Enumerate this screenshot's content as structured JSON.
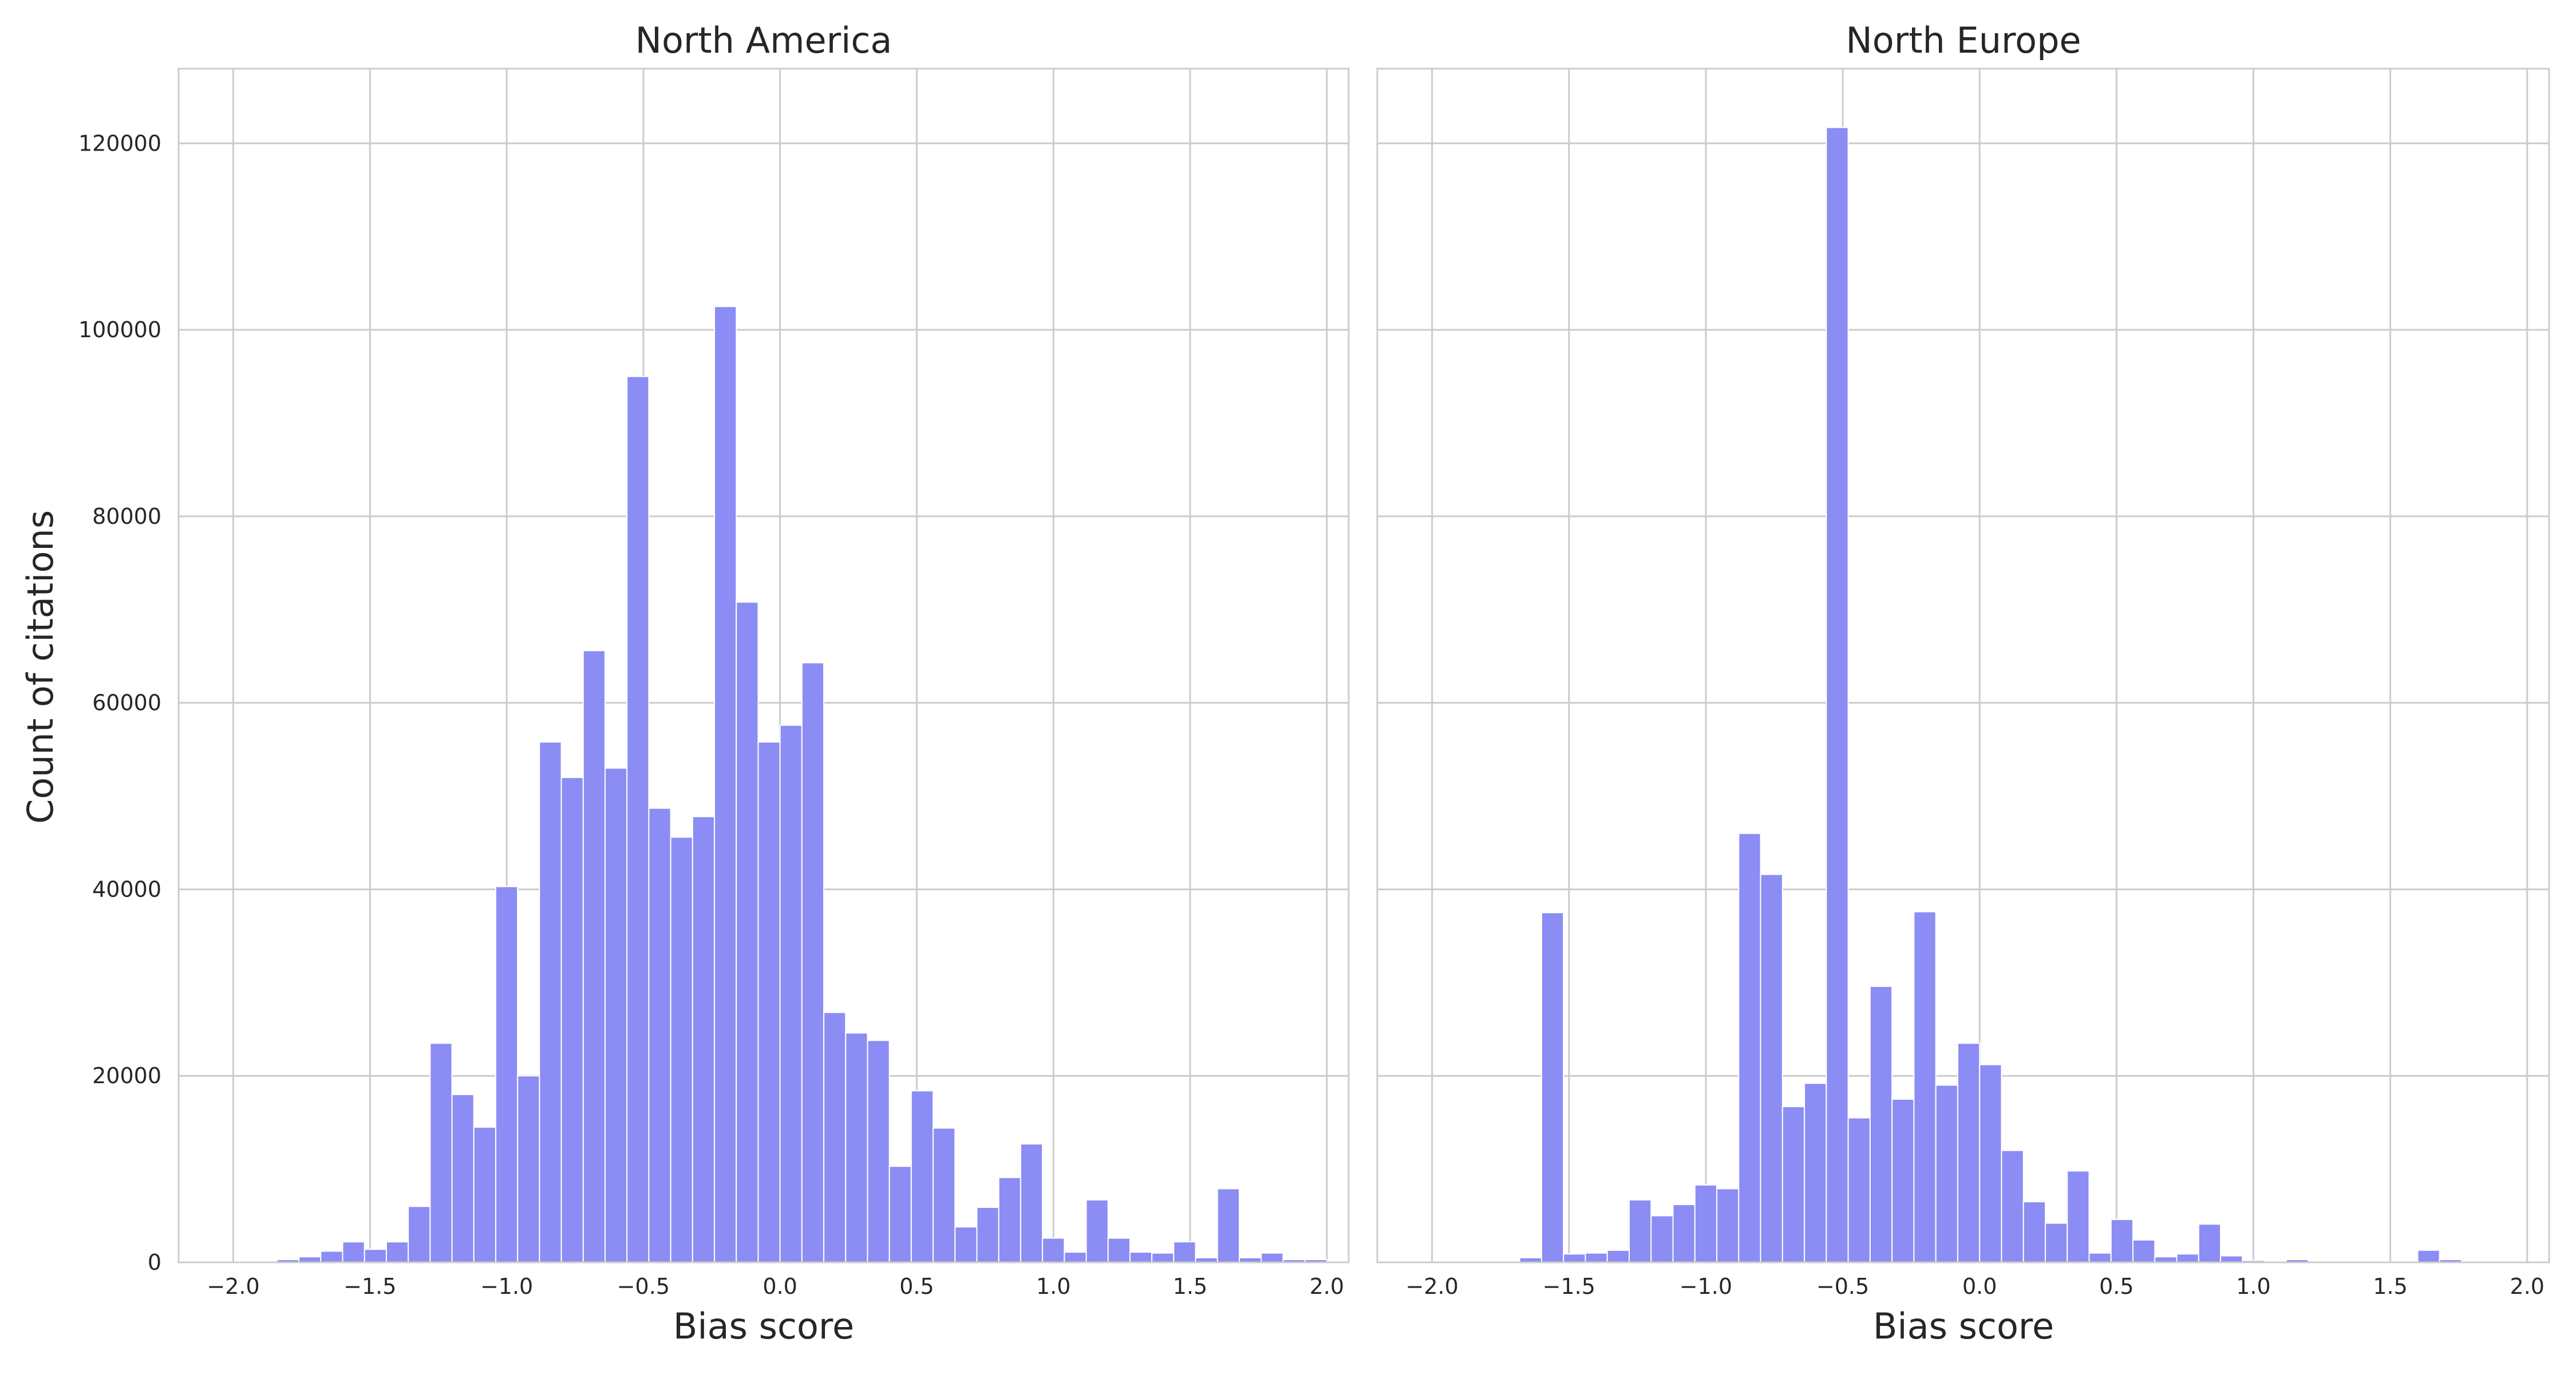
{
  "colors": {
    "bar_fill": "#8c8cf5",
    "bar_stroke": "#ffffff",
    "grid": "#cccccc",
    "spine": "#cccccc",
    "text": "#262626"
  },
  "figure": {
    "ylabel": "Count of citations"
  },
  "chart_data": [
    {
      "type": "bar",
      "title": "North America",
      "xlabel": "Bias score",
      "ylabel": "Count of citations",
      "xlim": [
        -2.2,
        2.08
      ],
      "ylim": [
        0,
        128000
      ],
      "xticks": [
        -2.0,
        -1.5,
        -1.0,
        -0.5,
        0.0,
        0.5,
        1.0,
        1.5,
        2.0
      ],
      "xtick_labels": [
        "−2.0",
        "−1.5",
        "−1.0",
        "−0.5",
        "0.0",
        "0.5",
        "1.0",
        "1.5",
        "2.0"
      ],
      "yticks": [
        0,
        20000,
        40000,
        60000,
        80000,
        100000,
        120000
      ],
      "ytick_labels": [
        "0",
        "20000",
        "40000",
        "60000",
        "80000",
        "100000",
        "120000"
      ],
      "grid": true,
      "bin_width": 0.08,
      "bin_start": -2.0,
      "values": [
        0,
        0,
        300,
        600,
        1200,
        2200,
        1400,
        2200,
        6000,
        23500,
        18000,
        14500,
        40300,
        20000,
        55800,
        52000,
        65600,
        53000,
        95000,
        48700,
        45600,
        47800,
        102500,
        70800,
        55800,
        57600,
        64300,
        26800,
        24600,
        23800,
        10300,
        18400,
        14400,
        3800,
        5900,
        9100,
        12700,
        2600,
        1100,
        6700,
        2600,
        1100,
        1000,
        2200,
        500,
        7900,
        500,
        1000,
        300,
        300,
        0
      ]
    },
    {
      "type": "bar",
      "title": "North Europe",
      "xlabel": "Bias score",
      "ylabel": "",
      "xlim": [
        -2.2,
        2.08
      ],
      "ylim": [
        0,
        128000
      ],
      "xticks": [
        -2.0,
        -1.5,
        -1.0,
        -0.5,
        0.0,
        0.5,
        1.0,
        1.5,
        2.0
      ],
      "xtick_labels": [
        "−2.0",
        "−1.5",
        "−1.0",
        "−0.5",
        "0.0",
        "0.5",
        "1.0",
        "1.5",
        "2.0"
      ],
      "yticks": [
        0,
        20000,
        40000,
        60000,
        80000,
        100000,
        120000
      ],
      "ytick_labels": [
        "",
        "",
        "",
        "",
        "",
        "",
        ""
      ],
      "grid": true,
      "bin_width": 0.08,
      "bin_start": -2.0,
      "values": [
        0,
        0,
        0,
        0,
        500,
        37500,
        900,
        1000,
        1300,
        6700,
        5000,
        6200,
        8300,
        7900,
        46000,
        41600,
        16700,
        19200,
        121700,
        15500,
        29600,
        17500,
        37600,
        19000,
        23500,
        21200,
        12000,
        6500,
        4200,
        9800,
        1000,
        4600,
        2400,
        600,
        900,
        4100,
        700,
        200,
        0,
        300,
        0,
        0,
        0,
        0,
        0,
        1300,
        300,
        100,
        0,
        0,
        0
      ]
    }
  ]
}
